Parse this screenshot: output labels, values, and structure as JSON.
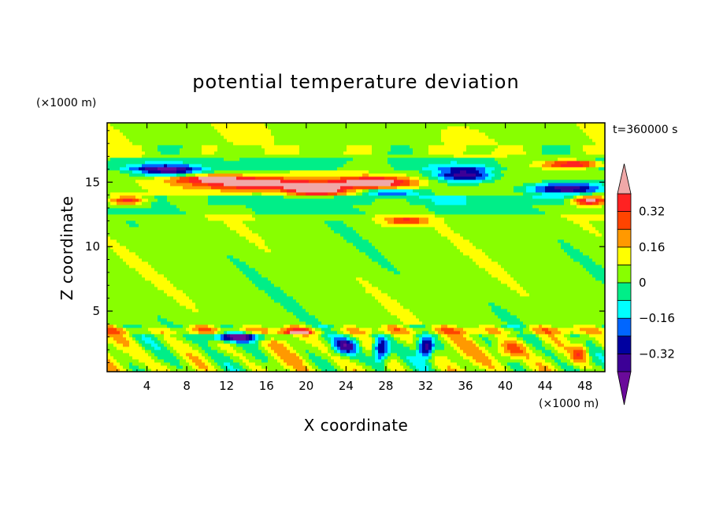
{
  "chart_data": {
    "type": "heatmap",
    "title": "potential temperature deviation",
    "xlabel": "X coordinate",
    "ylabel": "Z coordinate",
    "x_unit": "(×1000 m)",
    "y_unit": "(×1000 m)",
    "time_label": "t=360000 s",
    "xlim": [
      0,
      50
    ],
    "ylim": [
      0.3,
      19.6
    ],
    "x_ticks": [
      4,
      8,
      12,
      16,
      20,
      24,
      28,
      32,
      36,
      40,
      44,
      48
    ],
    "x_tick_labels": [
      "4",
      "8",
      "12",
      "16",
      "20",
      "24",
      "28",
      "32",
      "36",
      "40",
      "44",
      "48"
    ],
    "y_ticks": [
      5,
      10,
      15
    ],
    "y_tick_labels": [
      "5",
      "10",
      "15"
    ],
    "colorbar": {
      "levels": [
        -0.4,
        -0.32,
        -0.24,
        -0.16,
        -0.08,
        0,
        0.08,
        0.16,
        0.24,
        0.32,
        0.4
      ],
      "labels": [
        "0.32",
        "0.16",
        "0",
        "−0.16",
        "−0.32"
      ],
      "label_values": [
        0.32,
        0.16,
        0,
        -0.16,
        -0.32
      ],
      "colors_bottom_to_top": [
        "#3c0096",
        "#0000a0",
        "#0066ff",
        "#00ffff",
        "#00ee88",
        "#88ff00",
        "#ffff00",
        "#ff9900",
        "#ff4400",
        "#ff2222"
      ],
      "under_color": "#6a0a9a",
      "over_color": "#f0a8a8"
    },
    "features": [
      {
        "x": 6,
        "z": 15.9,
        "sx": 3.5,
        "sz": 0.45,
        "value": -0.45
      },
      {
        "x": 10,
        "z": 15.3,
        "sx": 4,
        "sz": 0.3,
        "value": 0.3
      },
      {
        "x": 15,
        "z": 14.9,
        "sx": 6,
        "sz": 0.5,
        "value": 0.45
      },
      {
        "x": 21,
        "z": 14.4,
        "sx": 3,
        "sz": 0.45,
        "value": 0.45
      },
      {
        "x": 27,
        "z": 15.0,
        "sx": 4,
        "sz": 0.45,
        "value": 0.45
      },
      {
        "x": 28.5,
        "z": 14.2,
        "sx": 3,
        "sz": 0.3,
        "value": -0.35
      },
      {
        "x": 36,
        "z": 15.6,
        "sx": 3,
        "sz": 0.55,
        "value": -0.45
      },
      {
        "x": 46,
        "z": 14.5,
        "sx": 4,
        "sz": 0.5,
        "value": -0.45
      },
      {
        "x": 47,
        "z": 16.4,
        "sx": 3,
        "sz": 0.35,
        "value": 0.45
      },
      {
        "x": 2,
        "z": 13.6,
        "sx": 2,
        "sz": 0.4,
        "value": 0.45
      },
      {
        "x": 48.5,
        "z": 13.6,
        "sx": 1.8,
        "sz": 0.4,
        "value": 0.45
      },
      {
        "x": 30,
        "z": 12.0,
        "sx": 2,
        "sz": 0.3,
        "value": 0.3
      },
      {
        "x": 13,
        "z": 3.0,
        "sx": 3,
        "sz": 0.35,
        "value": -0.45
      },
      {
        "x": 27.5,
        "z": 2.0,
        "sx": 0.8,
        "sz": 1.0,
        "value": -0.45
      },
      {
        "x": 32,
        "z": 2.2,
        "sx": 0.8,
        "sz": 0.8,
        "value": -0.45
      },
      {
        "x": 24,
        "z": 2.3,
        "sx": 1.2,
        "sz": 0.6,
        "value": -0.35
      },
      {
        "x": 40.5,
        "z": 2.0,
        "sx": 1.5,
        "sz": 0.8,
        "value": 0.24
      },
      {
        "x": 47.5,
        "z": 1.8,
        "sx": 0.8,
        "sz": 0.8,
        "value": 0.24
      },
      {
        "x": 19,
        "z": 3.4,
        "sx": 1.5,
        "sz": 0.2,
        "value": 0.32
      }
    ]
  }
}
